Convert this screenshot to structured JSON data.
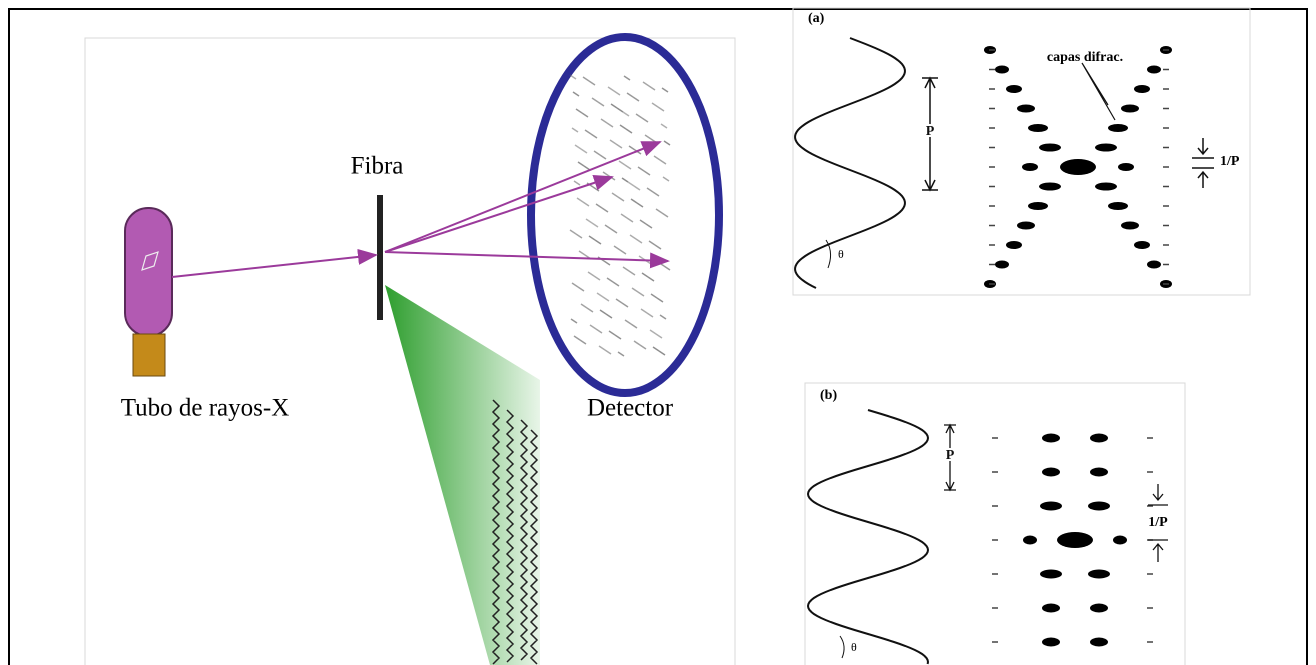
{
  "left_panel": {
    "fiber_label": "Fibra",
    "source_label": "Tubo de rayos-X",
    "detector_label": "Detector"
  },
  "panel_a": {
    "tag": "(a)",
    "layer_label": "capas difrac.",
    "period_label": "P",
    "reciprocal_label": "1/P",
    "angle_label": "θ"
  },
  "panel_b": {
    "tag": "(b)",
    "period_label": "P",
    "reciprocal_label": "1/P",
    "angle_label": "θ"
  }
}
